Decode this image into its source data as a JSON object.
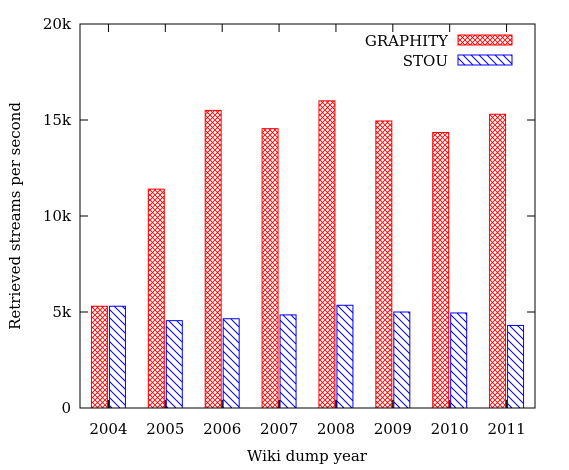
{
  "chart_data": {
    "type": "bar",
    "categories": [
      "2004",
      "2005",
      "2006",
      "2007",
      "2008",
      "2009",
      "2010",
      "2011"
    ],
    "series": [
      {
        "name": "GRAPHITY",
        "values": [
          5300,
          11400,
          15500,
          14550,
          16000,
          14950,
          14350,
          15300
        ],
        "color": "#ff0000",
        "pattern": "crosshatch"
      },
      {
        "name": "STOU",
        "values": [
          5300,
          4550,
          4650,
          4850,
          5350,
          5000,
          4950,
          4300
        ],
        "color": "#0000ff",
        "pattern": "diagonal"
      }
    ],
    "xlabel": "Wiki dump year",
    "ylabel": "Retrieved streams per second",
    "ylim": [
      0,
      20000
    ],
    "yticks": [
      {
        "value": 0,
        "label": "0"
      },
      {
        "value": 5000,
        "label": "5k"
      },
      {
        "value": 10000,
        "label": "10k"
      },
      {
        "value": 15000,
        "label": "15k"
      },
      {
        "value": 20000,
        "label": "20k"
      }
    ],
    "legend_position": "top-right",
    "grid": false
  }
}
